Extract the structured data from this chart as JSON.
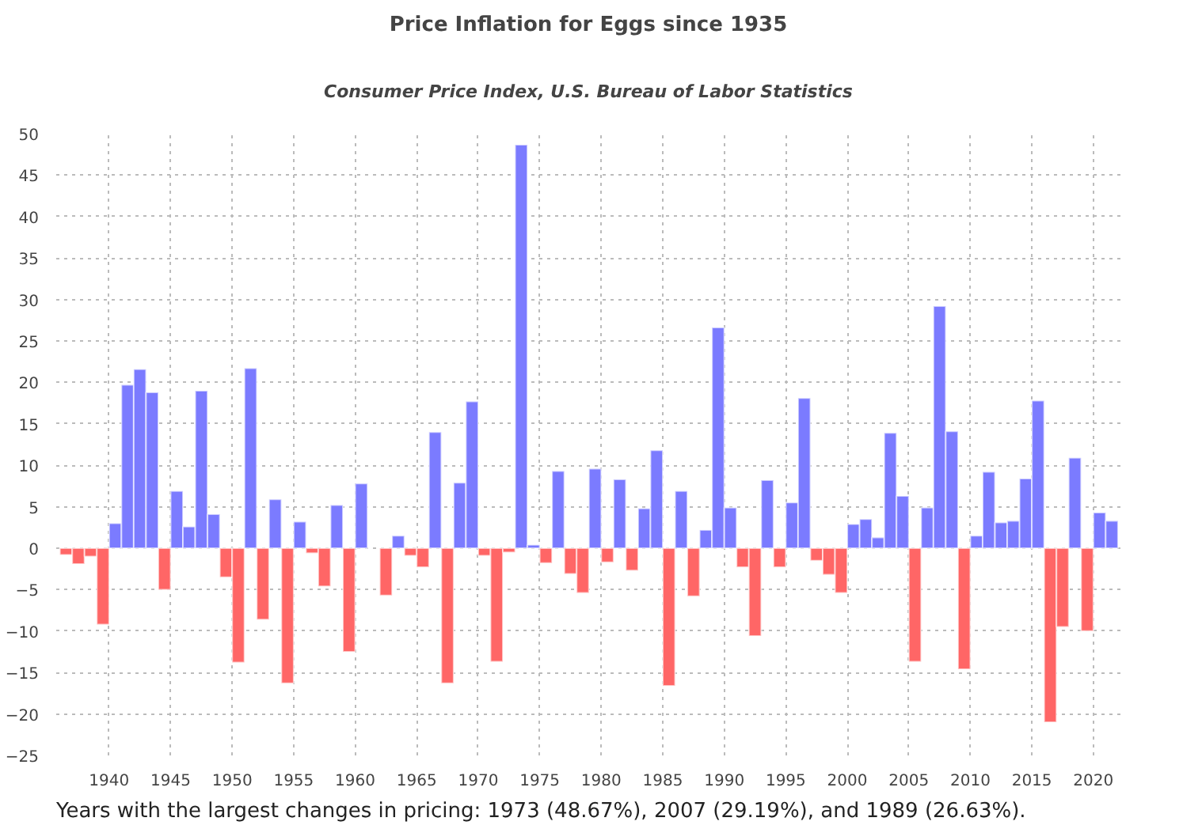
{
  "chart_data": {
    "type": "bar",
    "title": "Price Inflation for Eggs since 1935",
    "subtitle": "Consumer Price Index, U.S. Bureau of Labor Statistics",
    "x": [
      1936,
      1937,
      1938,
      1939,
      1940,
      1941,
      1942,
      1943,
      1944,
      1945,
      1946,
      1947,
      1948,
      1949,
      1950,
      1951,
      1952,
      1953,
      1954,
      1955,
      1956,
      1957,
      1958,
      1959,
      1960,
      1961,
      1962,
      1963,
      1964,
      1965,
      1966,
      1967,
      1968,
      1969,
      1970,
      1971,
      1972,
      1973,
      1974,
      1975,
      1976,
      1977,
      1978,
      1979,
      1980,
      1981,
      1982,
      1983,
      1984,
      1985,
      1986,
      1987,
      1988,
      1989,
      1990,
      1991,
      1992,
      1993,
      1994,
      1995,
      1996,
      1997,
      1998,
      1999,
      2000,
      2001,
      2002,
      2003,
      2004,
      2005,
      2006,
      2007,
      2008,
      2009,
      2010,
      2011,
      2012,
      2013,
      2014,
      2015,
      2016,
      2017,
      2018,
      2019,
      2020,
      2021
    ],
    "values": [
      -0.8,
      -1.9,
      -1.0,
      -9.2,
      3.0,
      19.7,
      21.6,
      18.8,
      -5.0,
      6.9,
      2.6,
      19.0,
      4.1,
      -3.5,
      -13.8,
      21.7,
      -8.6,
      5.9,
      -16.3,
      3.2,
      -0.6,
      -4.6,
      5.2,
      -12.5,
      7.8,
      null,
      -5.7,
      1.5,
      -0.9,
      -2.3,
      14.0,
      -16.3,
      7.9,
      17.7,
      -0.9,
      -13.7,
      -0.5,
      48.67,
      0.4,
      -1.8,
      9.3,
      -3.1,
      -5.4,
      9.6,
      -1.7,
      8.3,
      -2.7,
      4.8,
      11.8,
      -16.6,
      6.9,
      -5.8,
      2.2,
      26.63,
      4.9,
      -2.3,
      -10.6,
      8.2,
      -2.3,
      5.5,
      18.1,
      -1.5,
      -3.2,
      -5.4,
      2.9,
      3.5,
      1.3,
      13.9,
      6.3,
      -13.7,
      4.9,
      29.19,
      14.1,
      -14.6,
      1.5,
      9.2,
      3.1,
      3.3,
      8.4,
      17.8,
      -21.0,
      -9.5,
      10.9,
      -10.0,
      4.3,
      3.3
    ],
    "colors": [
      "#ff6666",
      "#ff6666",
      "#ff6666",
      "#ff6666",
      "#7b7bff",
      "#7b7bff",
      "#7b7bff",
      "#7b7bff",
      "#ff6666",
      "#7b7bff",
      "#7b7bff",
      "#7b7bff",
      "#7b7bff",
      "#ff6666",
      "#ff6666",
      "#7b7bff",
      "#ff6666",
      "#7b7bff",
      "#ff6666",
      "#7b7bff",
      "#ff6666",
      "#ff6666",
      "#7b7bff",
      "#ff6666",
      "#7b7bff",
      null,
      "#ff6666",
      "#7b7bff",
      "#ff6666",
      "#ff6666",
      "#7b7bff",
      "#ff6666",
      "#7b7bff",
      "#7b7bff",
      "#ff6666",
      "#ff6666",
      "#ff6666",
      "#7b7bff",
      "#7b7bff",
      "#ff6666",
      "#7b7bff",
      "#ff6666",
      "#ff6666",
      "#7b7bff",
      "#ff6666",
      "#7b7bff",
      "#ff6666",
      "#7b7bff",
      "#7b7bff",
      "#ff6666",
      "#7b7bff",
      "#ff6666",
      "#7b7bff",
      "#7b7bff",
      "#7b7bff",
      "#ff6666",
      "#ff6666",
      "#7b7bff",
      "#ff6666",
      "#7b7bff",
      "#7b7bff",
      "#ff6666",
      "#ff6666",
      "#ff6666",
      "#7b7bff",
      "#7b7bff",
      "#7b7bff",
      "#7b7bff",
      "#7b7bff",
      "#ff6666",
      "#7b7bff",
      "#7b7bff",
      "#7b7bff",
      "#ff6666",
      "#7b7bff",
      "#7b7bff",
      "#7b7bff",
      "#7b7bff",
      "#7b7bff",
      "#7b7bff",
      "#ff6666",
      "#ff6666",
      "#7b7bff",
      "#ff6666",
      "#7b7bff",
      "#7b7bff"
    ],
    "xlim": [
      1935.2,
      2021.7
    ],
    "ylim": [
      -25,
      50
    ],
    "xticks": [
      {
        "value": 1939.5,
        "label": "1940"
      },
      {
        "value": 1944.5,
        "label": "1945"
      },
      {
        "value": 1949.5,
        "label": "1950"
      },
      {
        "value": 1954.5,
        "label": "1955"
      },
      {
        "value": 1959.5,
        "label": "1960"
      },
      {
        "value": 1964.5,
        "label": "1965"
      },
      {
        "value": 1969.5,
        "label": "1970"
      },
      {
        "value": 1974.5,
        "label": "1975"
      },
      {
        "value": 1979.5,
        "label": "1980"
      },
      {
        "value": 1984.5,
        "label": "1985"
      },
      {
        "value": 1989.5,
        "label": "1990"
      },
      {
        "value": 1994.5,
        "label": "1995"
      },
      {
        "value": 1999.5,
        "label": "2000"
      },
      {
        "value": 2004.5,
        "label": "2005"
      },
      {
        "value": 2009.5,
        "label": "2010"
      },
      {
        "value": 2014.5,
        "label": "2015"
      },
      {
        "value": 2019.5,
        "label": "2020"
      }
    ],
    "yticks": [
      -25,
      -20,
      -15,
      -10,
      -5,
      0,
      5,
      10,
      15,
      20,
      25,
      30,
      35,
      40,
      45,
      50
    ],
    "grid": true,
    "annotations": [
      "Years with the largest changes in pricing: 1973 (48.67%), 2007 (29.19%), and 1989 (26.63%)."
    ]
  }
}
